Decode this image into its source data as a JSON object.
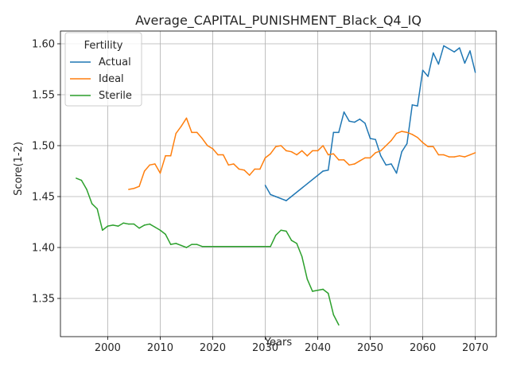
{
  "chart_data": {
    "type": "line",
    "title": "Average_CAPITAL_PUNISHMENT_Black_Q4_IQ",
    "xlabel": "Years",
    "ylabel": "Score(1-2)",
    "xlim": [
      1991,
      2074
    ],
    "ylim": [
      1.3125,
      1.6125
    ],
    "xticks": [
      2000,
      2010,
      2020,
      2030,
      2040,
      2050,
      2060,
      2070
    ],
    "yticks": [
      1.35,
      1.4,
      1.45,
      1.5,
      1.55,
      1.6
    ],
    "ytick_labels": [
      "1.35",
      "1.40",
      "1.45",
      "1.50",
      "1.55",
      "1.60"
    ],
    "grid": true,
    "legend": {
      "title": "Fertility",
      "placement": "top-left"
    },
    "series": [
      {
        "name": "Actual",
        "color": "#1f77b4",
        "points": [
          [
            2030,
            1.461
          ],
          [
            2031,
            1.452
          ],
          [
            2032,
            1.45
          ],
          [
            2033,
            1.448
          ],
          [
            2034,
            1.446
          ],
          [
            2041,
            1.475
          ],
          [
            2042,
            1.476
          ],
          [
            2043,
            1.513
          ],
          [
            2044,
            1.513
          ],
          [
            2045,
            1.533
          ],
          [
            2046,
            1.524
          ],
          [
            2047,
            1.523
          ],
          [
            2048,
            1.526
          ],
          [
            2049,
            1.522
          ],
          [
            2050,
            1.507
          ],
          [
            2051,
            1.506
          ],
          [
            2052,
            1.49
          ],
          [
            2053,
            1.481
          ],
          [
            2054,
            1.482
          ],
          [
            2055,
            1.473
          ],
          [
            2056,
            1.494
          ],
          [
            2057,
            1.502
          ],
          [
            2058,
            1.54
          ],
          [
            2059,
            1.539
          ],
          [
            2060,
            1.574
          ],
          [
            2061,
            1.568
          ],
          [
            2062,
            1.591
          ],
          [
            2063,
            1.58
          ],
          [
            2064,
            1.598
          ],
          [
            2065,
            1.595
          ],
          [
            2066,
            1.592
          ],
          [
            2067,
            1.596
          ],
          [
            2068,
            1.581
          ],
          [
            2069,
            1.593
          ],
          [
            2070,
            1.572
          ]
        ]
      },
      {
        "name": "Ideal",
        "color": "#ff7f0e",
        "points": [
          [
            2004,
            1.457
          ],
          [
            2005,
            1.458
          ],
          [
            2006,
            1.46
          ],
          [
            2007,
            1.475
          ],
          [
            2008,
            1.481
          ],
          [
            2009,
            1.482
          ],
          [
            2010,
            1.473
          ],
          [
            2011,
            1.49
          ],
          [
            2012,
            1.49
          ],
          [
            2013,
            1.512
          ],
          [
            2014,
            1.519
          ],
          [
            2015,
            1.527
          ],
          [
            2016,
            1.513
          ],
          [
            2017,
            1.513
          ],
          [
            2018,
            1.507
          ],
          [
            2019,
            1.5
          ],
          [
            2020,
            1.497
          ],
          [
            2021,
            1.491
          ],
          [
            2022,
            1.491
          ],
          [
            2023,
            1.481
          ],
          [
            2024,
            1.482
          ],
          [
            2025,
            1.477
          ],
          [
            2026,
            1.476
          ],
          [
            2027,
            1.471
          ],
          [
            2028,
            1.477
          ],
          [
            2029,
            1.477
          ],
          [
            2030,
            1.488
          ],
          [
            2031,
            1.492
          ],
          [
            2032,
            1.499
          ],
          [
            2033,
            1.5
          ],
          [
            2034,
            1.495
          ],
          [
            2035,
            1.494
          ],
          [
            2036,
            1.491
          ],
          [
            2037,
            1.495
          ],
          [
            2038,
            1.49
          ],
          [
            2039,
            1.495
          ],
          [
            2040,
            1.495
          ],
          [
            2041,
            1.5
          ],
          [
            2042,
            1.491
          ],
          [
            2043,
            1.492
          ],
          [
            2044,
            1.486
          ],
          [
            2045,
            1.486
          ],
          [
            2046,
            1.481
          ],
          [
            2047,
            1.482
          ],
          [
            2048,
            1.485
          ],
          [
            2049,
            1.488
          ],
          [
            2050,
            1.488
          ],
          [
            2051,
            1.493
          ],
          [
            2052,
            1.495
          ],
          [
            2053,
            1.5
          ],
          [
            2054,
            1.505
          ],
          [
            2055,
            1.512
          ],
          [
            2056,
            1.514
          ],
          [
            2057,
            1.513
          ],
          [
            2058,
            1.511
          ],
          [
            2059,
            1.508
          ],
          [
            2060,
            1.503
          ],
          [
            2061,
            1.499
          ],
          [
            2062,
            1.499
          ],
          [
            2063,
            1.491
          ],
          [
            2064,
            1.491
          ],
          [
            2065,
            1.489
          ],
          [
            2066,
            1.489
          ],
          [
            2067,
            1.49
          ],
          [
            2068,
            1.489
          ],
          [
            2069,
            1.491
          ],
          [
            2070,
            1.493
          ]
        ]
      },
      {
        "name": "Sterile",
        "color": "#2ca02c",
        "points": [
          [
            1994,
            1.468
          ],
          [
            1995,
            1.466
          ],
          [
            1996,
            1.457
          ],
          [
            1997,
            1.443
          ],
          [
            1998,
            1.438
          ],
          [
            1999,
            1.417
          ],
          [
            2000,
            1.421
          ],
          [
            2001,
            1.422
          ],
          [
            2002,
            1.421
          ],
          [
            2003,
            1.424
          ],
          [
            2004,
            1.423
          ],
          [
            2005,
            1.423
          ],
          [
            2006,
            1.419
          ],
          [
            2007,
            1.422
          ],
          [
            2008,
            1.423
          ],
          [
            2009,
            1.42
          ],
          [
            2010,
            1.417
          ],
          [
            2011,
            1.413
          ],
          [
            2012,
            1.403
          ],
          [
            2013,
            1.404
          ],
          [
            2014,
            1.402
          ],
          [
            2015,
            1.4
          ],
          [
            2016,
            1.403
          ],
          [
            2017,
            1.403
          ],
          [
            2018,
            1.401
          ],
          [
            2019,
            1.401
          ],
          [
            2020,
            1.401
          ],
          [
            2021,
            1.401
          ],
          [
            2022,
            1.401
          ],
          [
            2023,
            1.401
          ],
          [
            2024,
            1.401
          ],
          [
            2025,
            1.401
          ],
          [
            2026,
            1.401
          ],
          [
            2027,
            1.401
          ],
          [
            2028,
            1.401
          ],
          [
            2029,
            1.401
          ],
          [
            2030,
            1.401
          ],
          [
            2031,
            1.401
          ],
          [
            2032,
            1.412
          ],
          [
            2033,
            1.417
          ],
          [
            2034,
            1.416
          ],
          [
            2035,
            1.407
          ],
          [
            2036,
            1.404
          ],
          [
            2037,
            1.391
          ],
          [
            2038,
            1.369
          ],
          [
            2039,
            1.357
          ],
          [
            2040,
            1.358
          ],
          [
            2041,
            1.359
          ],
          [
            2042,
            1.355
          ],
          [
            2043,
            1.334
          ],
          [
            2044,
            1.324
          ]
        ]
      }
    ]
  }
}
